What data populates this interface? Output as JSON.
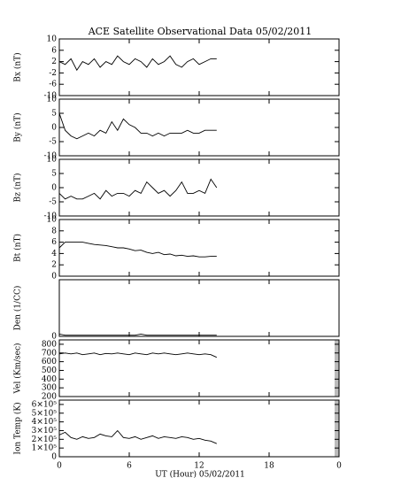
{
  "chart_data": [
    {
      "type": "line",
      "title": "ACE Satellite Observational Data   05/02/2011",
      "y_label": "Bx (nT)",
      "x": [
        0,
        0.5,
        1,
        1.5,
        2,
        2.5,
        3,
        3.5,
        4,
        4.5,
        5,
        5.5,
        6,
        6.5,
        7,
        7.5,
        8,
        8.5,
        9,
        9.5,
        10,
        10.5,
        11,
        11.5,
        12,
        12.5,
        13,
        13.5
      ],
      "values": [
        2,
        1,
        3,
        -1,
        2,
        1,
        3,
        0,
        2,
        1,
        4,
        2,
        1,
        3,
        2,
        0,
        3,
        1,
        2,
        4,
        1,
        0,
        2,
        3,
        1,
        2,
        3,
        3
      ],
      "color": "#000000",
      "xlim": [
        0,
        24
      ],
      "xticks": [
        0,
        6,
        12,
        18,
        {
          "value": 24,
          "label": "0"
        }
      ],
      "ylim": [
        -10,
        10
      ],
      "yticks": [
        10,
        6,
        2,
        -2,
        -6,
        -10
      ]
    },
    {
      "type": "line",
      "y_label": "By (nT)",
      "x": [
        0,
        0.5,
        1,
        1.5,
        2,
        2.5,
        3,
        3.5,
        4,
        4.5,
        5,
        5.5,
        6,
        6.5,
        7,
        7.5,
        8,
        8.5,
        9,
        9.5,
        10,
        10.5,
        11,
        11.5,
        12,
        12.5,
        13,
        13.5
      ],
      "values": [
        5,
        -1,
        -3,
        -4,
        -3,
        -2,
        -3,
        -1,
        -2,
        2,
        -1,
        3,
        1,
        0,
        -2,
        -2,
        -3,
        -2,
        -3,
        -2,
        -2,
        -2,
        -1,
        -2,
        -2,
        -1,
        -1,
        -1
      ],
      "color": "#000000",
      "xlim": [
        0,
        24
      ],
      "xticks": [
        0,
        6,
        12,
        18,
        {
          "value": 24,
          "label": "0"
        }
      ],
      "ylim": [
        -10,
        10
      ],
      "yticks": [
        10,
        5,
        0,
        -5,
        -10
      ]
    },
    {
      "type": "line",
      "y_label": "Bz (nT)",
      "x": [
        0,
        0.5,
        1,
        1.5,
        2,
        2.5,
        3,
        3.5,
        4,
        4.5,
        5,
        5.5,
        6,
        6.5,
        7,
        7.5,
        8,
        8.5,
        9,
        9.5,
        10,
        10.5,
        11,
        11.5,
        12,
        12.5,
        13,
        13.5
      ],
      "values": [
        -2,
        -4,
        -3,
        -4,
        -4,
        -3,
        -2,
        -4,
        -1,
        -3,
        -2,
        -2,
        -3,
        -1,
        -2,
        2,
        0,
        -2,
        -1,
        -3,
        -1,
        2,
        -2,
        -2,
        -1,
        -2,
        3,
        0
      ],
      "color": "#000000",
      "xlim": [
        0,
        24
      ],
      "xticks": [
        0,
        6,
        12,
        18,
        {
          "value": 24,
          "label": "0"
        }
      ],
      "ylim": [
        -10,
        10
      ],
      "yticks": [
        10,
        5,
        0,
        -5,
        -10
      ]
    },
    {
      "type": "line",
      "y_label": "Bt (nT)",
      "x": [
        0,
        0.5,
        1,
        1.5,
        2,
        2.5,
        3,
        3.5,
        4,
        4.5,
        5,
        5.5,
        6,
        6.5,
        7,
        7.5,
        8,
        8.5,
        9,
        9.5,
        10,
        10.5,
        11,
        11.5,
        12,
        12.5,
        13,
        13.5
      ],
      "values": [
        5,
        6,
        6,
        6,
        6,
        5.8,
        5.6,
        5.5,
        5.4,
        5.2,
        5,
        5,
        4.8,
        4.5,
        4.6,
        4.2,
        4,
        4.2,
        3.8,
        3.9,
        3.6,
        3.7,
        3.5,
        3.6,
        3.4,
        3.4,
        3.5,
        3.5
      ],
      "color": "#000000",
      "xlim": [
        0,
        24
      ],
      "xticks": [
        0,
        6,
        12,
        18,
        {
          "value": 24,
          "label": "0"
        }
      ],
      "ylim": [
        0,
        10
      ],
      "yticks": [
        10,
        8,
        6,
        4,
        2,
        0
      ]
    },
    {
      "type": "line",
      "y_label": "Den (1/CC)",
      "x": [
        0,
        0.5,
        1,
        1.5,
        2,
        2.5,
        3,
        3.5,
        4,
        4.5,
        5,
        5.5,
        6,
        6.5,
        7,
        7.5,
        8,
        8.5,
        9,
        9.5,
        10,
        10.5,
        11,
        11.5,
        12,
        12.5,
        13,
        13.5
      ],
      "values": [
        2,
        1,
        1,
        1,
        1,
        1,
        1,
        1,
        1,
        1,
        1,
        1,
        1,
        1,
        2,
        1,
        1,
        1,
        1,
        1,
        1,
        1,
        1,
        1,
        1,
        1,
        1,
        1
      ],
      "color": "#000000",
      "xlim": [
        0,
        24
      ],
      "xticks": [
        0,
        6,
        12,
        18,
        {
          "value": 24,
          "label": "0"
        }
      ],
      "ylim": [
        0,
        50
      ],
      "yticks": [
        0
      ]
    },
    {
      "type": "line",
      "y_label": "Vel (Km/sec)",
      "x": [
        0,
        0.5,
        1,
        1.5,
        2,
        2.5,
        3,
        3.5,
        4,
        4.5,
        5,
        5.5,
        6,
        6.5,
        7,
        7.5,
        8,
        8.5,
        9,
        9.5,
        10,
        10.5,
        11,
        11.5,
        12,
        12.5,
        13,
        13.5
      ],
      "values": [
        690,
        700,
        690,
        700,
        680,
        690,
        700,
        680,
        695,
        690,
        700,
        690,
        680,
        700,
        690,
        680,
        700,
        690,
        700,
        690,
        680,
        690,
        700,
        690,
        680,
        690,
        680,
        650
      ],
      "color": "#000000",
      "xlim": [
        0,
        24
      ],
      "xticks": [
        0,
        6,
        12,
        18,
        {
          "value": 24,
          "label": "0"
        }
      ],
      "ylim": [
        200,
        850
      ],
      "yticks": [
        800,
        700,
        600,
        500,
        400,
        300,
        200
      ]
    },
    {
      "type": "line",
      "y_label": "Ion Temp (K)",
      "x_label": "UT (Hour)  05/02/2011",
      "x": [
        0,
        0.5,
        1,
        1.5,
        2,
        2.5,
        3,
        3.5,
        4,
        4.5,
        5,
        5.5,
        6,
        6.5,
        7,
        7.5,
        8,
        8.5,
        9,
        9.5,
        10,
        10.5,
        11,
        11.5,
        12,
        12.5,
        13,
        13.5
      ],
      "values": [
        250000,
        280000,
        220000,
        200000,
        230000,
        210000,
        220000,
        260000,
        240000,
        230000,
        300000,
        220000,
        210000,
        230000,
        200000,
        220000,
        240000,
        210000,
        230000,
        220000,
        210000,
        230000,
        220000,
        200000,
        210000,
        190000,
        180000,
        150000
      ],
      "color": "#000000",
      "xlim": [
        0,
        24
      ],
      "xticks": [
        0,
        6,
        12,
        18,
        {
          "value": 24,
          "label": "0"
        }
      ],
      "ylim": [
        0,
        650000
      ],
      "yticks": [
        {
          "value": 600000,
          "label": "6×10⁵"
        },
        {
          "value": 500000,
          "label": "5×10⁵"
        },
        {
          "value": 400000,
          "label": "4×10⁵"
        },
        {
          "value": 300000,
          "label": "3×10⁵"
        },
        {
          "value": 200000,
          "label": "2×10⁵"
        },
        {
          "value": 100000,
          "label": "1×10⁵"
        },
        0
      ]
    }
  ]
}
